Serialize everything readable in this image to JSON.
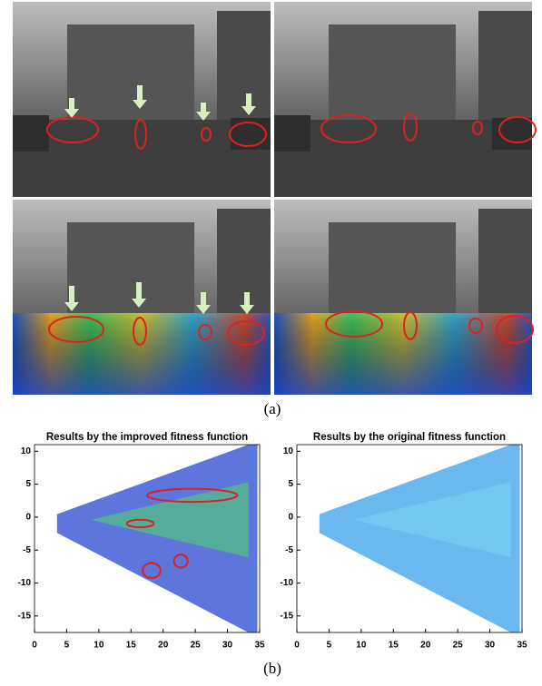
{
  "figure": {
    "panel_a_label": "(a)",
    "panel_b_label": "(b)"
  },
  "chart_data": [
    {
      "type": "scatter",
      "title": "Results by the improved fitness function",
      "xlim": [
        0,
        35
      ],
      "xticks": [
        0,
        5,
        10,
        15,
        20,
        25,
        30,
        35
      ],
      "ylim": [
        -17.5,
        11
      ],
      "yticks": [
        10,
        5,
        0,
        -5,
        -10,
        -15
      ]
    },
    {
      "type": "scatter",
      "title": "Results by the original fitness function",
      "xlim": [
        0,
        35
      ],
      "xticks": [
        0,
        5,
        10,
        15,
        20,
        25,
        30,
        35
      ],
      "ylim": [
        -17.5,
        11
      ],
      "yticks": [
        10,
        5,
        0,
        -5,
        -10,
        -15
      ]
    }
  ]
}
